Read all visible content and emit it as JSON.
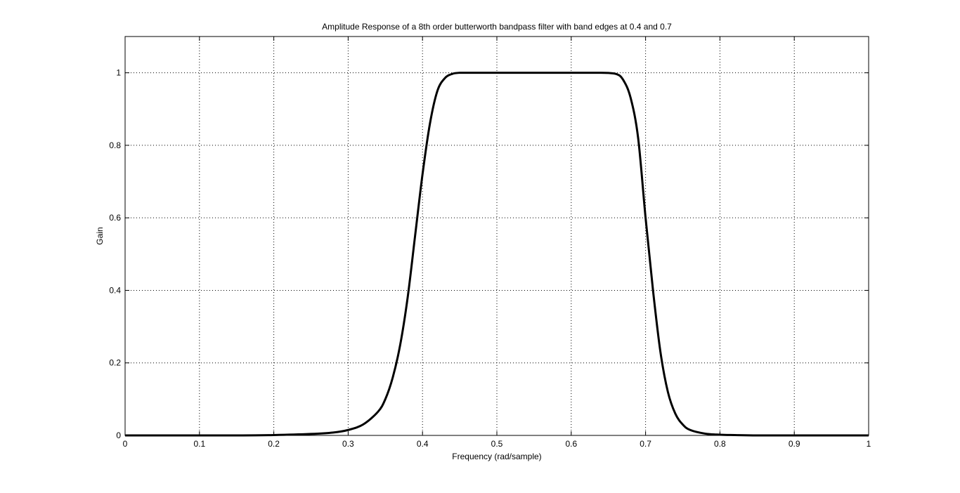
{
  "chart_data": {
    "type": "line",
    "title": "Amplitude Response of a 8th order butterworth bandpass filter with band edges at 0.4 and 0.7",
    "xlabel": "Frequency (rad/sample)",
    "ylabel": "Gain",
    "xlim": [
      0,
      1
    ],
    "ylim": [
      0,
      1.1
    ],
    "xticks": [
      0,
      0.1,
      0.2,
      0.3,
      0.4,
      0.5,
      0.6,
      0.7,
      0.8,
      0.9,
      1
    ],
    "xtick_labels": [
      "0",
      "0.1",
      "0.2",
      "0.3",
      "0.4",
      "0.5",
      "0.6",
      "0.7",
      "0.8",
      "0.9",
      "1"
    ],
    "yticks": [
      0,
      0.2,
      0.4,
      0.6,
      0.8,
      1
    ],
    "ytick_labels": [
      "0",
      "0.2",
      "0.4",
      "0.6",
      "0.8",
      "1"
    ],
    "grid": true,
    "line_color": "#000000",
    "series": [
      {
        "x": [
          0,
          0.05,
          0.1,
          0.15,
          0.2,
          0.25,
          0.28,
          0.3,
          0.32,
          0.34,
          0.35,
          0.36,
          0.37,
          0.38,
          0.39,
          0.4,
          0.41,
          0.42,
          0.43,
          0.44,
          0.45,
          0.47,
          0.5,
          0.55,
          0.6,
          0.64,
          0.66,
          0.67,
          0.68,
          0.69,
          0.7,
          0.71,
          0.72,
          0.73,
          0.74,
          0.75,
          0.76,
          0.78,
          0.8,
          0.82,
          0.85,
          0.9,
          0.95,
          1
        ],
        "values": [
          0,
          0,
          0,
          0,
          0.001,
          0.004,
          0.008,
          0.015,
          0.03,
          0.065,
          0.1,
          0.16,
          0.25,
          0.38,
          0.55,
          0.72,
          0.86,
          0.95,
          0.985,
          0.997,
          1.0,
          1.0,
          1.0,
          1.0,
          1.0,
          1.0,
          0.997,
          0.98,
          0.93,
          0.82,
          0.6,
          0.4,
          0.23,
          0.12,
          0.06,
          0.03,
          0.015,
          0.005,
          0.002,
          0.001,
          0,
          0,
          0,
          0
        ]
      }
    ]
  }
}
